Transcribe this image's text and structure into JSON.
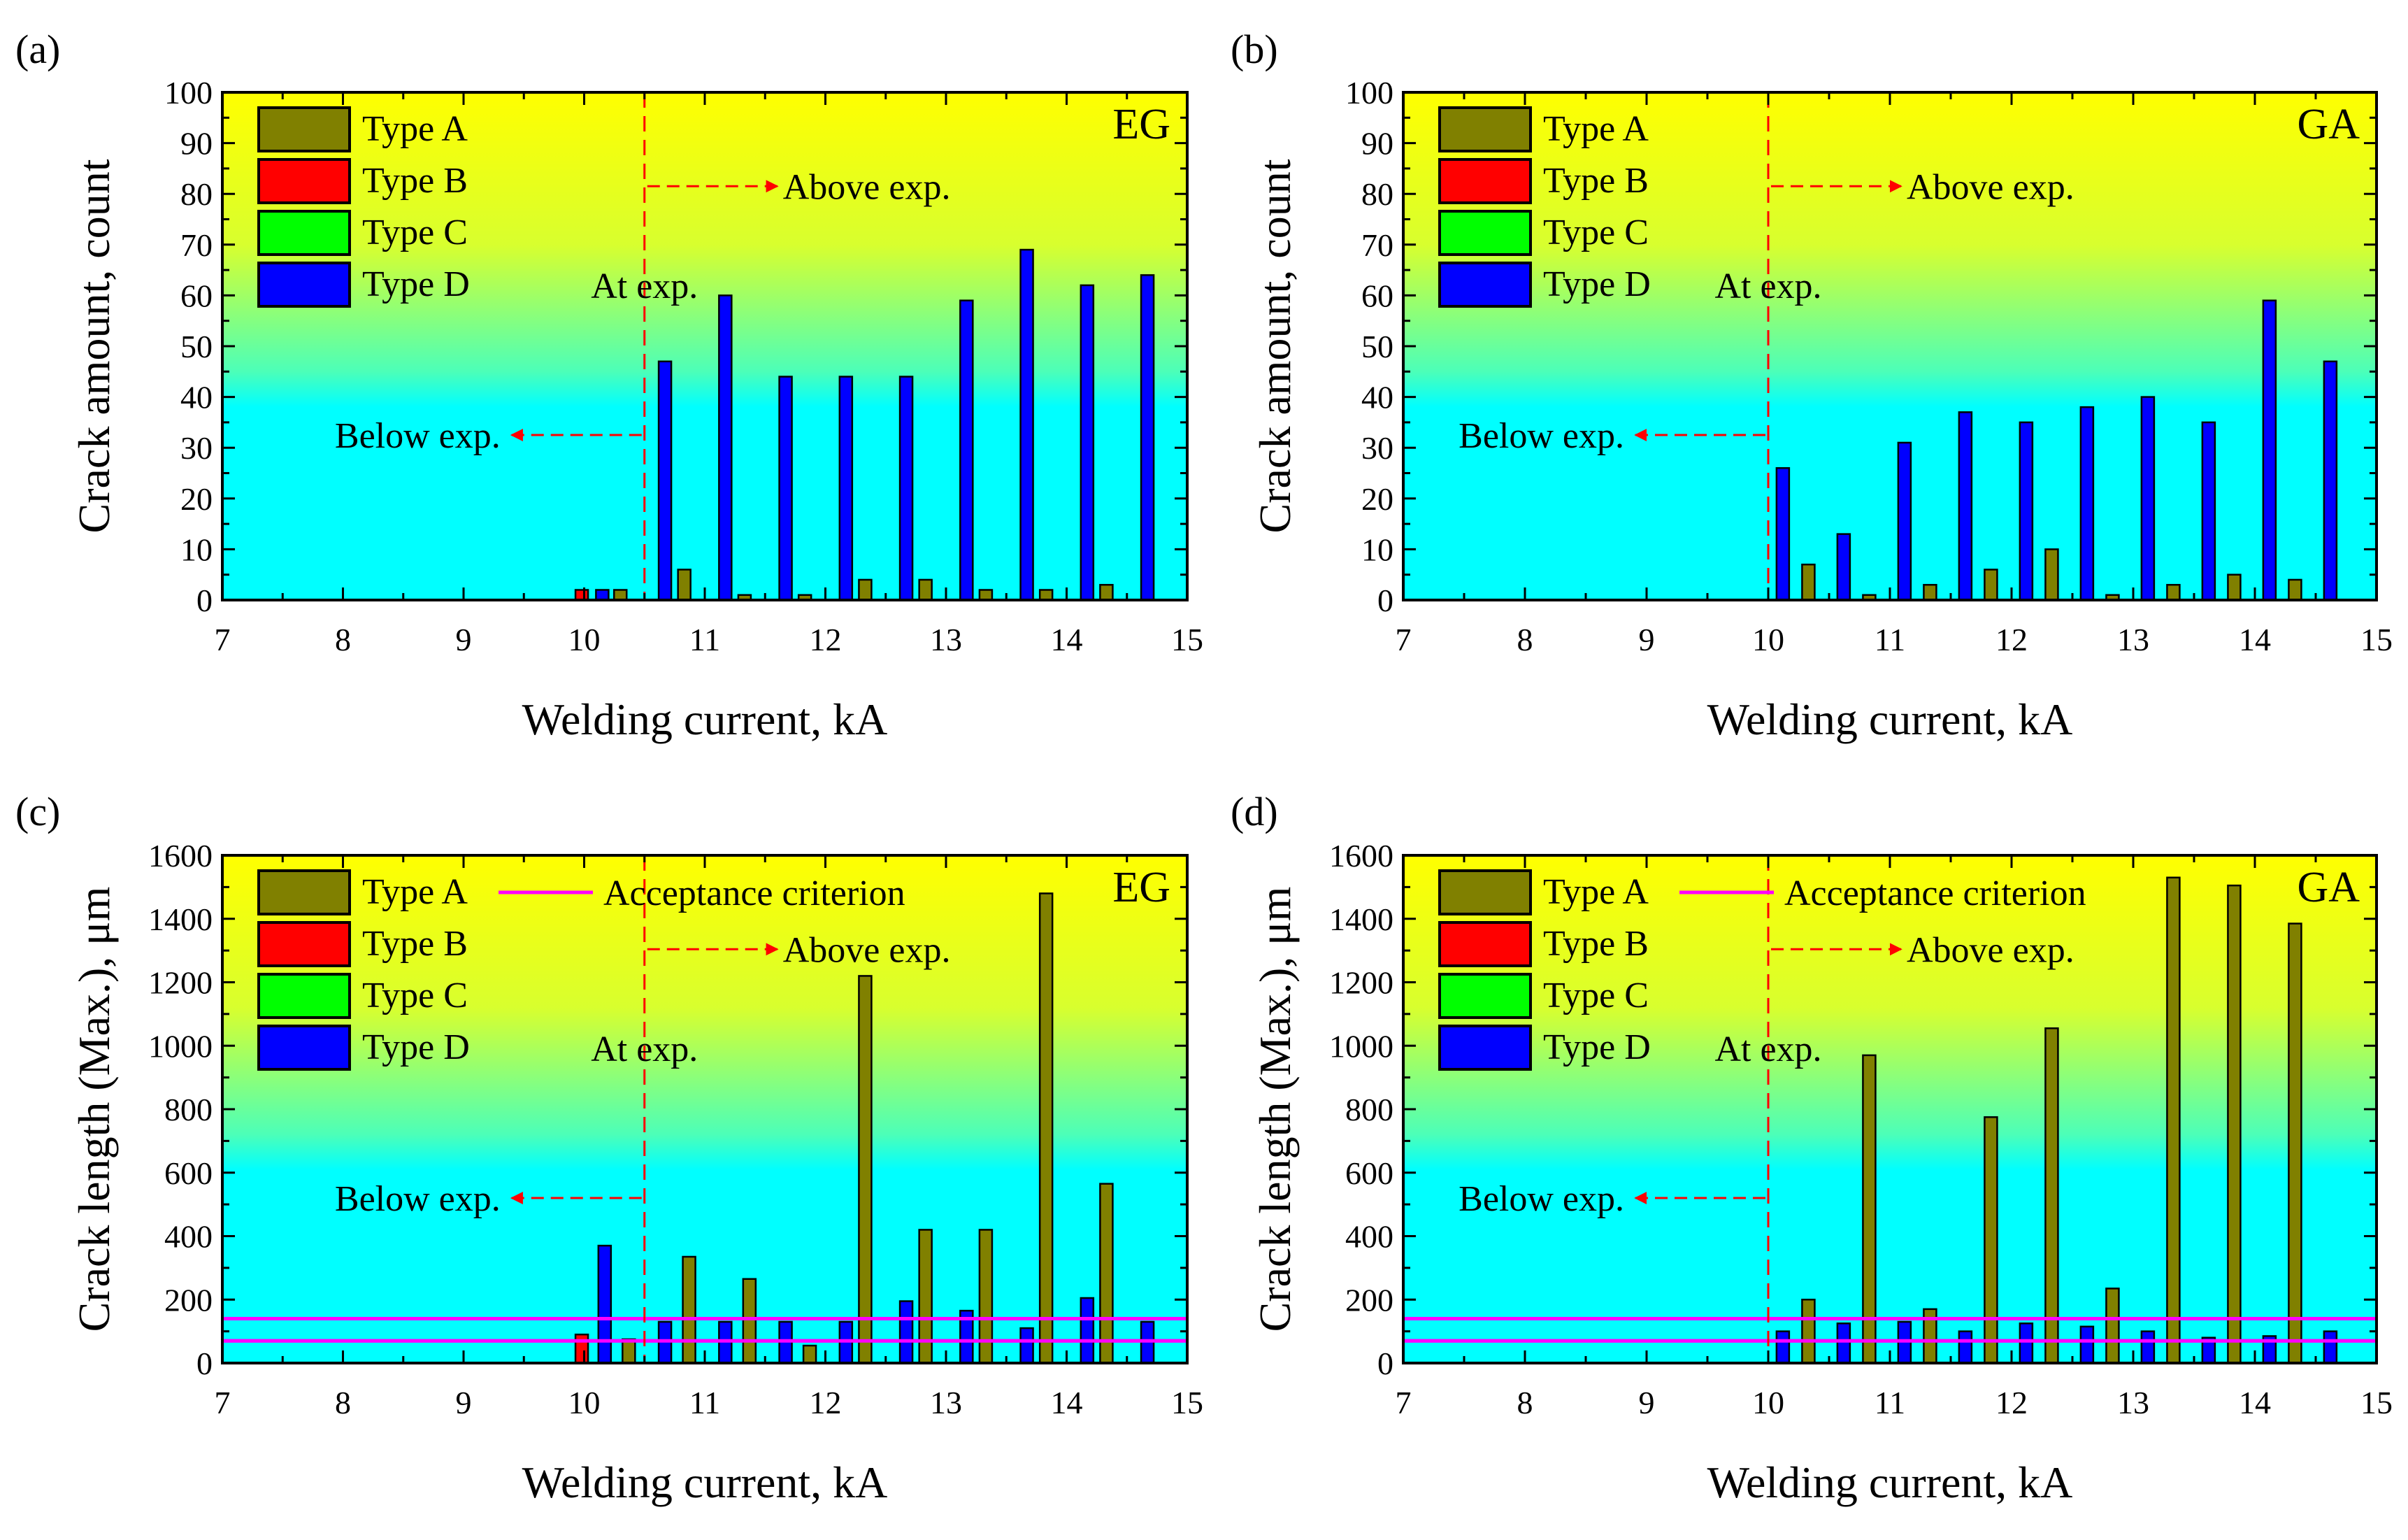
{
  "figure": {
    "common_xlabel": "Welding current, kA",
    "panels": [
      {
        "letter": "(a)",
        "material": "EG",
        "ylabel": "Crack amount, count",
        "legend": [
          "Type A",
          "Type B",
          "Type C",
          "Type D"
        ],
        "annotations": {
          "at": "At exp.",
          "above": "Above exp.",
          "below": "Below exp."
        }
      },
      {
        "letter": "(b)",
        "material": "GA",
        "ylabel": "Crack amount, count",
        "legend": [
          "Type A",
          "Type B",
          "Type C",
          "Type D"
        ],
        "annotations": {
          "at": "At exp.",
          "above": "Above exp.",
          "below": "Below exp."
        }
      },
      {
        "letter": "(c)",
        "material": "EG",
        "ylabel": "Crack length (Max.), μm",
        "legend": [
          "Type A",
          "Type B",
          "Type C",
          "Type D"
        ],
        "criterion_label": "Acceptance criterion",
        "annotations": {
          "at": "At exp.",
          "above": "Above exp.",
          "below": "Below exp."
        }
      },
      {
        "letter": "(d)",
        "material": "GA",
        "ylabel": "Crack length (Max.), μm",
        "legend": [
          "Type A",
          "Type B",
          "Type C",
          "Type D"
        ],
        "criterion_label": "Acceptance criterion",
        "annotations": {
          "at": "At exp.",
          "above": "Above exp.",
          "below": "Below exp."
        }
      }
    ]
  },
  "colors": {
    "typeA": "#808000",
    "typeB": "#ff0000",
    "typeC": "#00ff00",
    "typeD": "#0000ff",
    "bg_top": "#ffff00",
    "bg_bottom": "#00ffff",
    "criterion": "#ff00ff",
    "annotation": "#ff0000"
  },
  "chart_data": [
    {
      "id": "a",
      "type": "bar",
      "title": "EG",
      "xlabel": "Welding current, kA",
      "ylabel": "Crack amount, count",
      "xlim": [
        7,
        15
      ],
      "ylim": [
        0,
        100
      ],
      "xticks": [
        7,
        8,
        9,
        10,
        11,
        12,
        13,
        14,
        15
      ],
      "yticks": [
        0,
        10,
        20,
        30,
        40,
        50,
        60,
        70,
        80,
        90,
        100
      ],
      "series": [
        {
          "name": "Type A",
          "points": [
            [
              10.3,
              2
            ],
            [
              10.83,
              6
            ],
            [
              11.33,
              1
            ],
            [
              11.83,
              1
            ],
            [
              12.33,
              4
            ],
            [
              12.83,
              4
            ],
            [
              13.33,
              2
            ],
            [
              13.83,
              2
            ],
            [
              14.33,
              3
            ]
          ]
        },
        {
          "name": "Type B",
          "points": [
            [
              9.98,
              2
            ]
          ]
        },
        {
          "name": "Type C",
          "points": []
        },
        {
          "name": "Type D",
          "points": [
            [
              10.15,
              2
            ],
            [
              10.67,
              47
            ],
            [
              11.17,
              60
            ],
            [
              11.67,
              44
            ],
            [
              12.17,
              44
            ],
            [
              12.67,
              44
            ],
            [
              13.17,
              59
            ],
            [
              13.67,
              69
            ],
            [
              14.17,
              62
            ],
            [
              14.67,
              64
            ]
          ]
        }
      ],
      "exp_line_x": 10.5,
      "criterion_values": []
    },
    {
      "id": "b",
      "type": "bar",
      "title": "GA",
      "xlabel": "Welding current, kA",
      "ylabel": "Crack amount, count",
      "xlim": [
        7,
        15
      ],
      "ylim": [
        0,
        100
      ],
      "xticks": [
        7,
        8,
        9,
        10,
        11,
        12,
        13,
        14,
        15
      ],
      "yticks": [
        0,
        10,
        20,
        30,
        40,
        50,
        60,
        70,
        80,
        90,
        100
      ],
      "series": [
        {
          "name": "Type A",
          "points": [
            [
              10.33,
              7
            ],
            [
              10.83,
              1
            ],
            [
              11.33,
              3
            ],
            [
              11.83,
              6
            ],
            [
              12.33,
              10
            ],
            [
              12.83,
              1
            ],
            [
              13.33,
              3
            ],
            [
              13.83,
              5
            ],
            [
              14.33,
              4
            ]
          ]
        },
        {
          "name": "Type B",
          "points": []
        },
        {
          "name": "Type C",
          "points": []
        },
        {
          "name": "Type D",
          "points": [
            [
              10.12,
              26
            ],
            [
              10.62,
              13
            ],
            [
              11.12,
              31
            ],
            [
              11.62,
              37
            ],
            [
              12.12,
              35
            ],
            [
              12.62,
              38
            ],
            [
              13.12,
              40
            ],
            [
              13.62,
              35
            ],
            [
              14.12,
              59
            ],
            [
              14.62,
              47
            ]
          ]
        }
      ],
      "exp_line_x": 10.0,
      "criterion_values": []
    },
    {
      "id": "c",
      "type": "bar",
      "title": "EG",
      "xlabel": "Welding current, kA",
      "ylabel": "Crack length (Max.), μm",
      "xlim": [
        7,
        15
      ],
      "ylim": [
        0,
        1600
      ],
      "xticks": [
        7,
        8,
        9,
        10,
        11,
        12,
        13,
        14,
        15
      ],
      "yticks": [
        0,
        200,
        400,
        600,
        800,
        1000,
        1200,
        1400,
        1600
      ],
      "series": [
        {
          "name": "Type A",
          "points": [
            [
              10.37,
              75
            ],
            [
              10.87,
              335
            ],
            [
              11.37,
              265
            ],
            [
              11.87,
              55
            ],
            [
              12.33,
              1220
            ],
            [
              12.83,
              420
            ],
            [
              13.33,
              420
            ],
            [
              13.83,
              1480
            ],
            [
              14.33,
              565
            ]
          ]
        },
        {
          "name": "Type B",
          "points": [
            [
              9.98,
              90
            ]
          ]
        },
        {
          "name": "Type C",
          "points": []
        },
        {
          "name": "Type D",
          "points": [
            [
              10.17,
              370
            ],
            [
              10.67,
              130
            ],
            [
              11.17,
              130
            ],
            [
              11.67,
              130
            ],
            [
              12.17,
              130
            ],
            [
              12.67,
              195
            ],
            [
              13.17,
              165
            ],
            [
              13.67,
              110
            ],
            [
              14.17,
              205
            ],
            [
              14.67,
              130
            ]
          ]
        }
      ],
      "exp_line_x": 10.5,
      "criterion_values": [
        70,
        140
      ]
    },
    {
      "id": "d",
      "type": "bar",
      "title": "GA",
      "xlabel": "Welding current, kA",
      "ylabel": "Crack length (Max.), μm",
      "xlim": [
        7,
        15
      ],
      "ylim": [
        0,
        1600
      ],
      "xticks": [
        7,
        8,
        9,
        10,
        11,
        12,
        13,
        14,
        15
      ],
      "yticks": [
        0,
        200,
        400,
        600,
        800,
        1000,
        1200,
        1400,
        1600
      ],
      "series": [
        {
          "name": "Type A",
          "points": [
            [
              10.33,
              200
            ],
            [
              10.83,
              970
            ],
            [
              11.33,
              170
            ],
            [
              11.83,
              775
            ],
            [
              12.33,
              1055
            ],
            [
              12.83,
              235
            ],
            [
              13.33,
              1530
            ],
            [
              13.83,
              1505
            ],
            [
              14.33,
              1385
            ]
          ]
        },
        {
          "name": "Type B",
          "points": []
        },
        {
          "name": "Type C",
          "points": []
        },
        {
          "name": "Type D",
          "points": [
            [
              10.12,
              100
            ],
            [
              10.62,
              125
            ],
            [
              11.12,
              130
            ],
            [
              11.62,
              100
            ],
            [
              12.12,
              125
            ],
            [
              12.62,
              115
            ],
            [
              13.12,
              100
            ],
            [
              13.62,
              80
            ],
            [
              14.12,
              85
            ],
            [
              14.62,
              100
            ]
          ]
        }
      ],
      "exp_line_x": 10.0,
      "criterion_values": [
        70,
        140
      ]
    }
  ]
}
